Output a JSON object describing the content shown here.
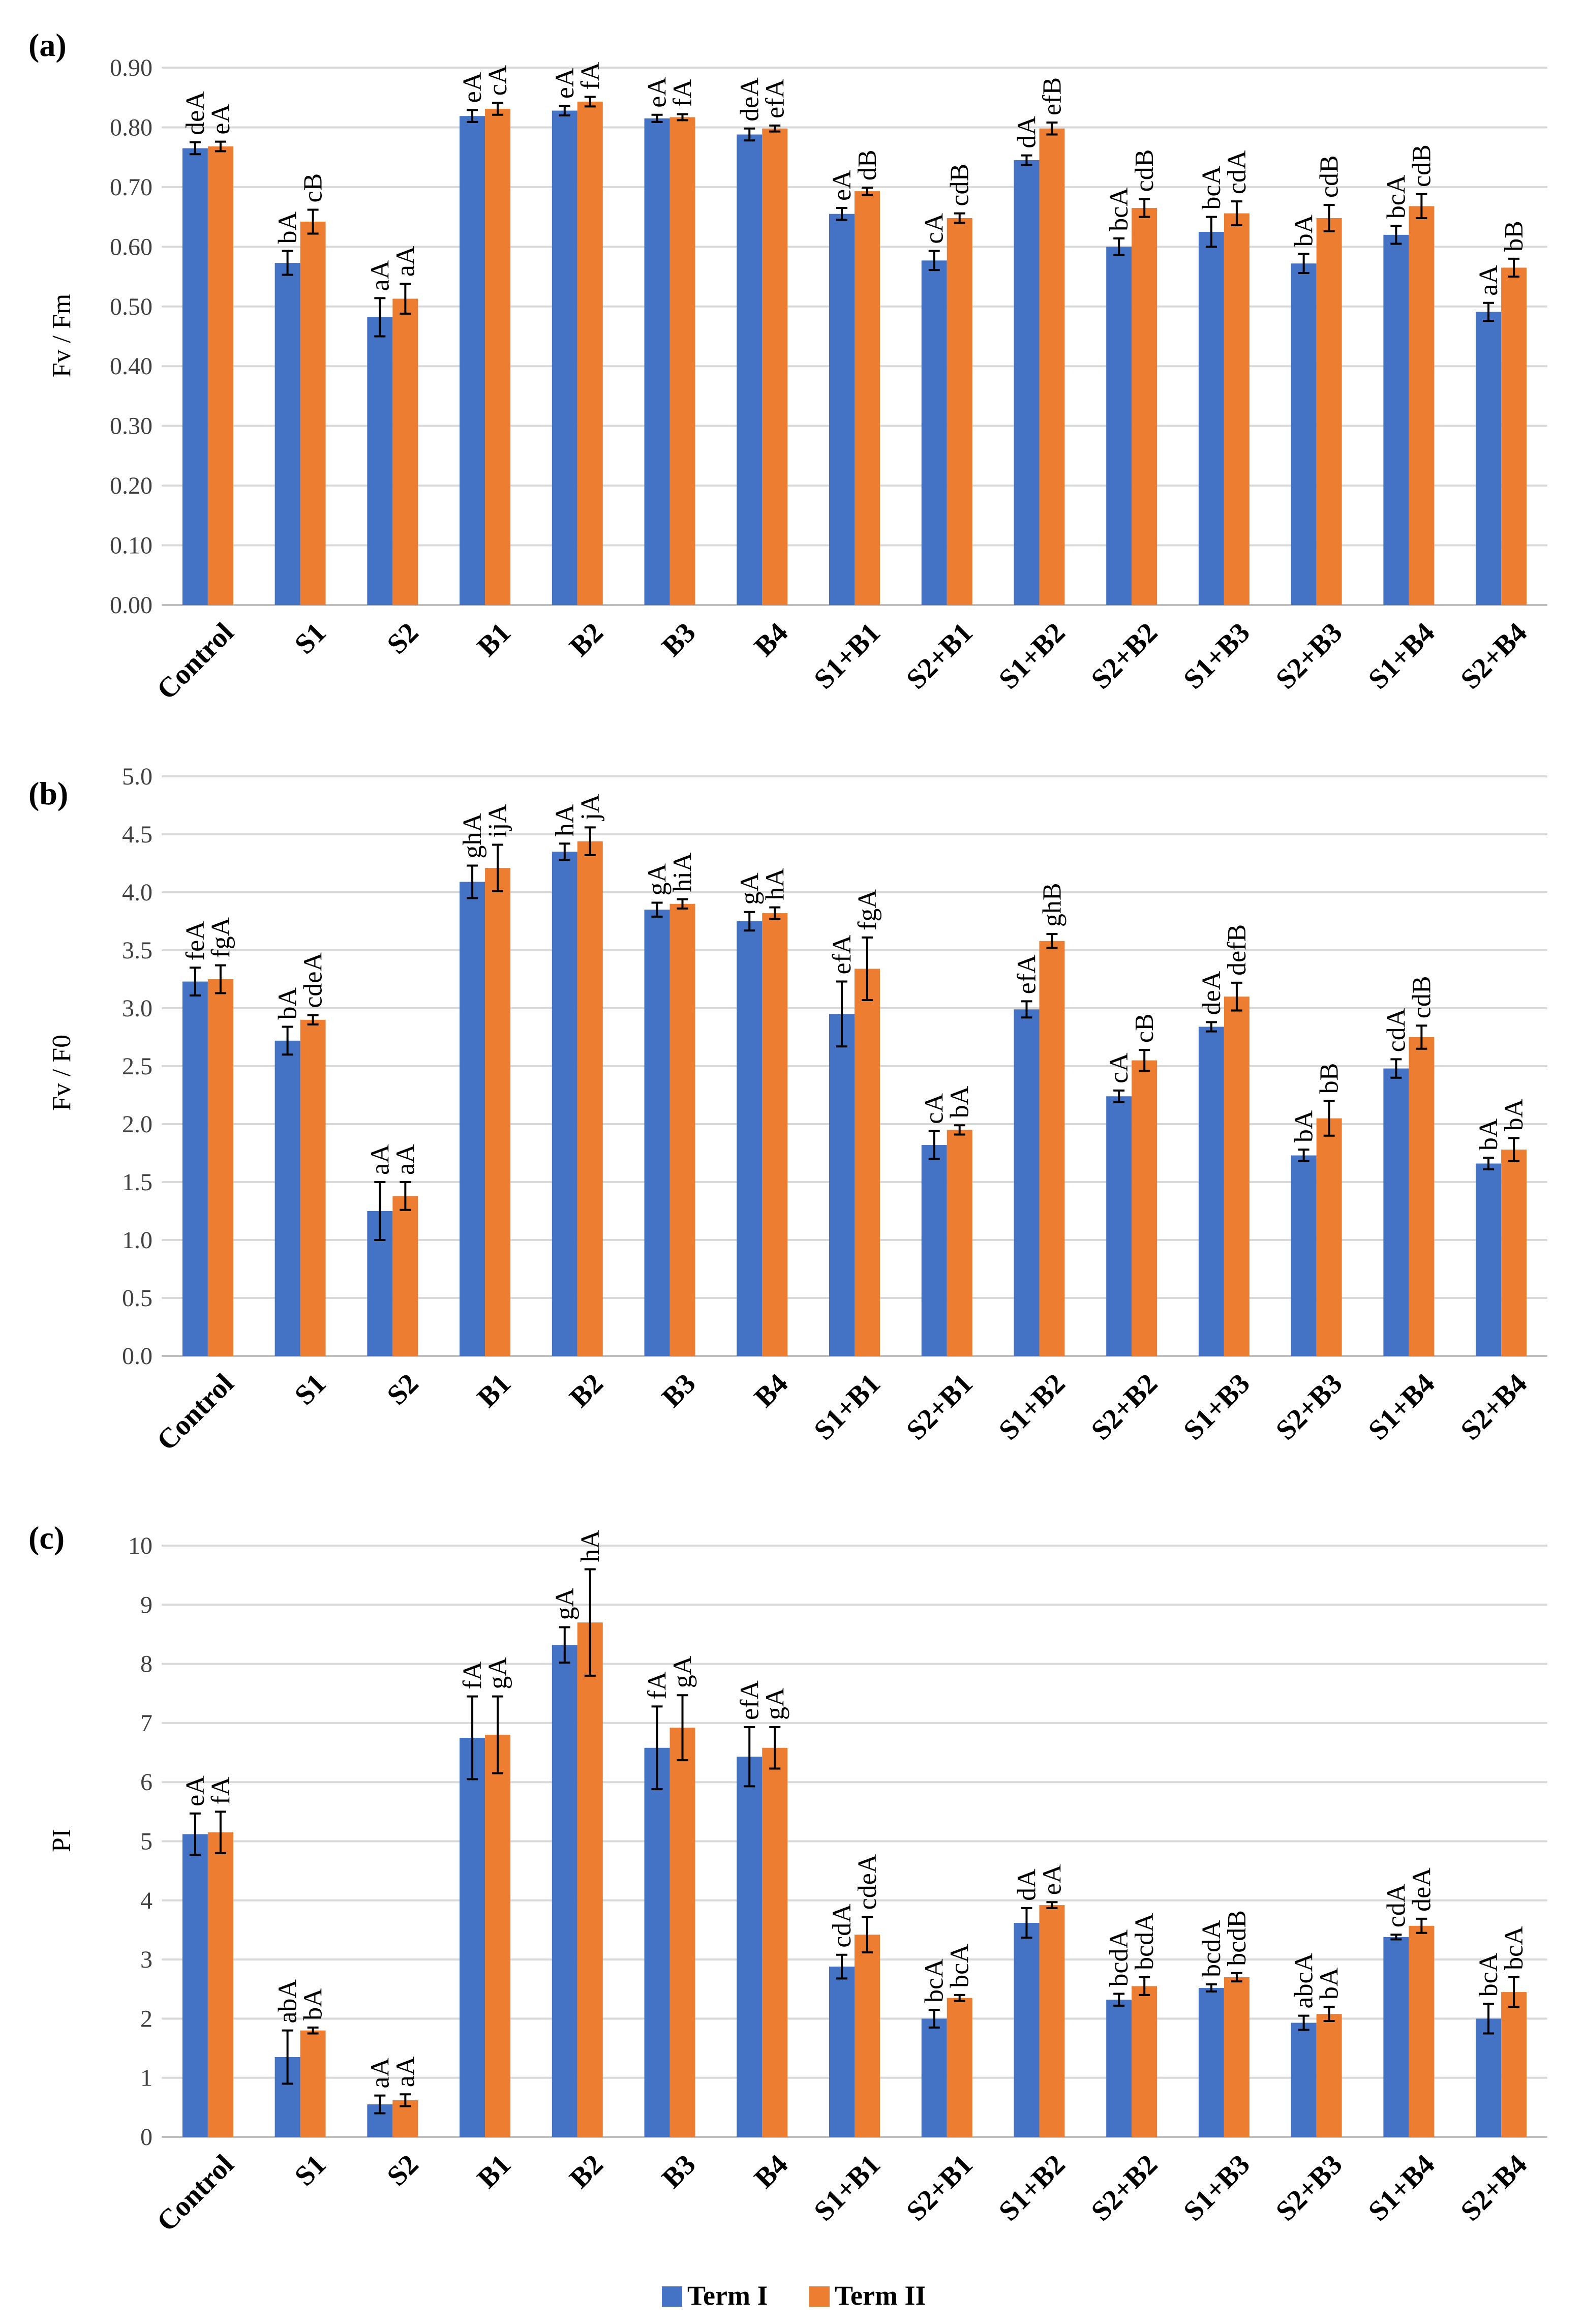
{
  "colors": {
    "term1": "#4472C4",
    "term2": "#ED7D31"
  },
  "legend": {
    "term1_label": "Term I",
    "term2_label": "Term II"
  },
  "chart_data": [
    {
      "type": "bar",
      "panel_label": "(a)",
      "ylabel": "Fv / Fm",
      "ylim": [
        0,
        0.9
      ],
      "yticks": [
        "0.00",
        "0.10",
        "0.20",
        "0.30",
        "0.40",
        "0.50",
        "0.60",
        "0.70",
        "0.80",
        "0.90"
      ],
      "categories": [
        "Control",
        "S1",
        "S2",
        "B1",
        "B2",
        "B3",
        "B4",
        "S1+B1",
        "S2+B1",
        "S1+B2",
        "S2+B2",
        "S1+B3",
        "S2+B3",
        "S1+B4",
        "S2+B4"
      ],
      "series": [
        {
          "name": "Term I",
          "values": [
            0.765,
            0.573,
            0.482,
            0.819,
            0.828,
            0.815,
            0.788,
            0.655,
            0.577,
            0.745,
            0.6,
            0.625,
            0.572,
            0.62,
            0.491
          ],
          "errors": [
            0.01,
            0.02,
            0.032,
            0.01,
            0.008,
            0.006,
            0.01,
            0.01,
            0.016,
            0.008,
            0.014,
            0.025,
            0.016,
            0.015,
            0.015
          ],
          "labels": [
            "deA",
            "bA",
            "aA",
            "eA",
            "eA",
            "eA",
            "deA",
            "eA",
            "cA",
            "dA",
            "bcA",
            "bcA",
            "bA",
            "bcA",
            "aA"
          ]
        },
        {
          "name": "Term II",
          "values": [
            0.768,
            0.642,
            0.513,
            0.831,
            0.843,
            0.817,
            0.798,
            0.693,
            0.648,
            0.798,
            0.665,
            0.656,
            0.648,
            0.668,
            0.565
          ],
          "errors": [
            0.008,
            0.02,
            0.025,
            0.01,
            0.008,
            0.005,
            0.005,
            0.006,
            0.008,
            0.01,
            0.015,
            0.02,
            0.022,
            0.02,
            0.015
          ],
          "labels": [
            "eA",
            "cB",
            "aA",
            "cA",
            "fA",
            "fA",
            "efA",
            "dB",
            "cdB",
            "efB",
            "cdB",
            "cdA",
            "cdB",
            "cdB",
            "bB"
          ]
        }
      ]
    },
    {
      "type": "bar",
      "panel_label": "(b)",
      "ylabel": "Fv / F0",
      "ylim": [
        0,
        5
      ],
      "yticks": [
        "0.0",
        "0.5",
        "1.0",
        "1.5",
        "2.0",
        "2.5",
        "3.0",
        "3.5",
        "4.0",
        "4.5",
        "5.0"
      ],
      "categories": [
        "Control",
        "S1",
        "S2",
        "B1",
        "B2",
        "B3",
        "B4",
        "S1+B1",
        "S2+B1",
        "S1+B2",
        "S2+B2",
        "S1+B3",
        "S2+B3",
        "S1+B4",
        "S2+B4"
      ],
      "series": [
        {
          "name": "Term I",
          "values": [
            3.23,
            2.72,
            1.25,
            4.09,
            4.35,
            3.85,
            3.75,
            2.95,
            1.82,
            2.99,
            2.24,
            2.84,
            1.73,
            2.48,
            1.66
          ],
          "errors": [
            0.12,
            0.12,
            0.25,
            0.14,
            0.07,
            0.06,
            0.08,
            0.28,
            0.12,
            0.07,
            0.05,
            0.04,
            0.05,
            0.08,
            0.05
          ],
          "labels": [
            "feA",
            "bA",
            "aA",
            "ghA",
            "hA",
            "gA",
            "gA",
            "efA",
            "cA",
            "efA",
            "cA",
            "deA",
            "bA",
            "cdA",
            "bA"
          ]
        },
        {
          "name": "Term II",
          "values": [
            3.25,
            2.9,
            1.38,
            4.21,
            4.44,
            3.9,
            3.82,
            3.34,
            1.95,
            3.58,
            2.55,
            3.1,
            2.05,
            2.75,
            1.78
          ],
          "errors": [
            0.12,
            0.04,
            0.12,
            0.2,
            0.12,
            0.04,
            0.05,
            0.27,
            0.04,
            0.06,
            0.09,
            0.12,
            0.15,
            0.1,
            0.1
          ],
          "labels": [
            "fgA",
            "cdeA",
            "aA",
            "ijA",
            "jA",
            "hiA",
            "hA",
            "fgA",
            "bA",
            "ghB",
            "cB",
            "defB",
            "bB",
            "cdB",
            "bA"
          ]
        }
      ]
    },
    {
      "type": "bar",
      "panel_label": "(c)",
      "ylabel": "PI",
      "ylim": [
        0,
        10
      ],
      "yticks": [
        "0",
        "1",
        "2",
        "3",
        "4",
        "5",
        "6",
        "7",
        "8",
        "9",
        "10"
      ],
      "categories": [
        "Control",
        "S1",
        "S2",
        "B1",
        "B2",
        "B3",
        "B4",
        "S1+B1",
        "S2+B1",
        "S1+B2",
        "S2+B2",
        "S1+B3",
        "S2+B3",
        "S1+B4",
        "S2+B4"
      ],
      "series": [
        {
          "name": "Term I",
          "values": [
            5.12,
            1.35,
            0.55,
            6.75,
            8.32,
            6.58,
            6.43,
            2.88,
            2.0,
            3.62,
            2.32,
            2.52,
            1.93,
            3.38,
            2.0
          ],
          "errors": [
            0.35,
            0.45,
            0.15,
            0.7,
            0.3,
            0.7,
            0.5,
            0.2,
            0.15,
            0.25,
            0.1,
            0.06,
            0.12,
            0.04,
            0.25
          ],
          "labels": [
            "eA",
            "abA",
            "aA",
            "fA",
            "gA",
            "fA",
            "efA",
            "cdA",
            "bcA",
            "dA",
            "bcdA",
            "bcdA",
            "abcA",
            "cdA",
            "bcA"
          ]
        },
        {
          "name": "Term II",
          "values": [
            5.15,
            1.8,
            0.62,
            6.8,
            8.7,
            6.92,
            6.58,
            3.42,
            2.35,
            3.92,
            2.55,
            2.7,
            2.08,
            3.57,
            2.45
          ],
          "errors": [
            0.35,
            0.05,
            0.1,
            0.65,
            0.9,
            0.55,
            0.35,
            0.3,
            0.05,
            0.05,
            0.15,
            0.07,
            0.12,
            0.12,
            0.25
          ],
          "labels": [
            "fA",
            "bA",
            "aA",
            "gA",
            "hA",
            "gA",
            "gA",
            "cdeA",
            "bcA",
            "eA",
            "bcdA",
            "bcdB",
            "bA",
            "deA",
            "bcA"
          ]
        }
      ]
    }
  ]
}
